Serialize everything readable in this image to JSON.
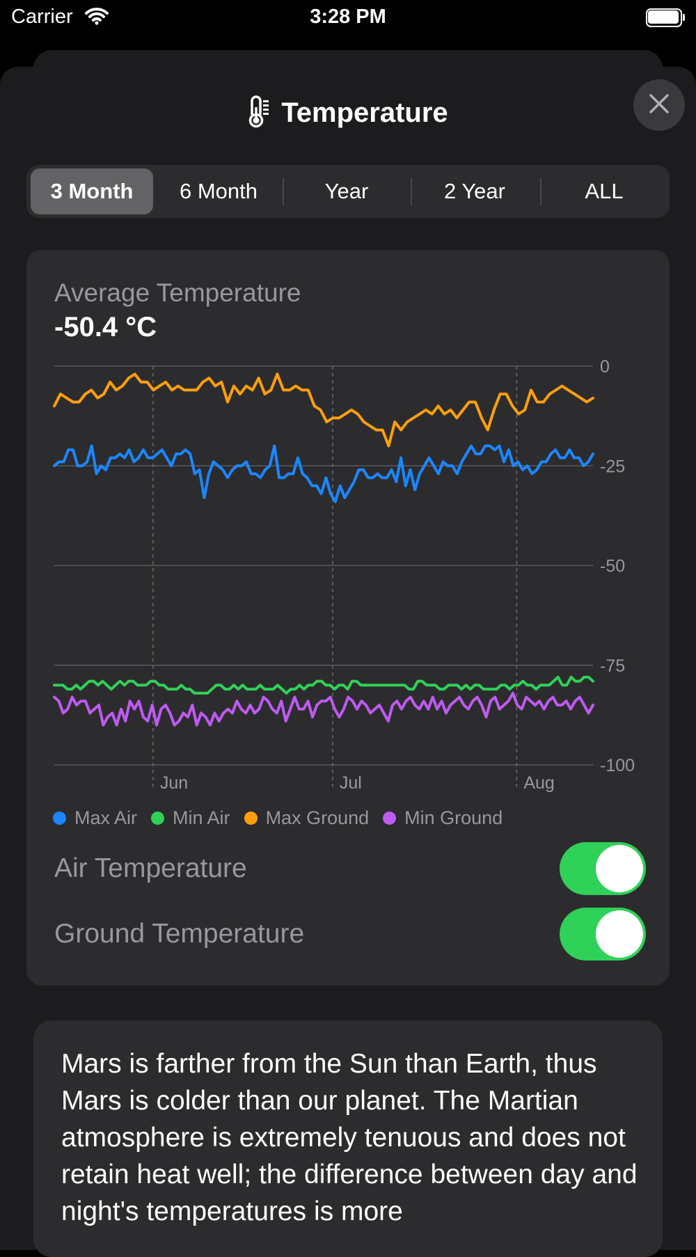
{
  "status_bar": {
    "carrier": "Carrier",
    "time": "3:28 PM"
  },
  "header": {
    "title": "Temperature",
    "icon": "thermometer-icon"
  },
  "range_tabs": [
    "3 Month",
    "6 Month",
    "Year",
    "2 Year",
    "ALL"
  ],
  "selected_range": "3 Month",
  "summary": {
    "label": "Average Temperature",
    "value": "-50.4 °C"
  },
  "chart_data": {
    "type": "line",
    "y_ticks": [
      "0",
      "-25",
      "-50",
      "-75",
      "-100"
    ],
    "ylim": [
      -100,
      0
    ],
    "x_ticks": [
      "Jun",
      "Jul",
      "Aug"
    ],
    "xlim": [
      0,
      120
    ],
    "x_tick_positions": [
      22,
      62,
      103
    ],
    "grid": true,
    "legend": "bottom",
    "series": [
      {
        "name": "Max Air",
        "color": "#1c86ff",
        "values": [
          -25,
          -24,
          -24,
          -21,
          -21,
          -25,
          -25,
          -24,
          -20,
          -27,
          -25,
          -26,
          -23,
          -23,
          -22,
          -23,
          -21,
          -24,
          -23,
          -21,
          -23,
          -23,
          -22,
          -21,
          -23,
          -25,
          -22,
          -22,
          -21,
          -22,
          -27,
          -26,
          -33,
          -27,
          -24,
          -25,
          -26,
          -28,
          -26,
          -25,
          -25,
          -24,
          -27,
          -27,
          -28,
          -26,
          -25,
          -20,
          -28,
          -28,
          -27,
          -27,
          -23,
          -27,
          -28,
          -30,
          -30,
          -32,
          -28,
          -32,
          -34,
          -30,
          -33,
          -31,
          -29,
          -26,
          -26,
          -28,
          -28,
          -27,
          -28,
          -28,
          -26,
          -29,
          -23,
          -30,
          -26,
          -31,
          -27,
          -25,
          -23,
          -25,
          -27,
          -24,
          -25,
          -25,
          -27,
          -24,
          -22,
          -20,
          -22,
          -22,
          -20,
          -20,
          -21,
          -20,
          -24,
          -21,
          -25,
          -24,
          -26,
          -25,
          -27,
          -26,
          -24,
          -24,
          -22,
          -21,
          -23,
          -23,
          -21,
          -23,
          -23,
          -25,
          -24,
          -22
        ]
      },
      {
        "name": "Min Air",
        "color": "#30d158",
        "values": [
          -80,
          -80,
          -80,
          -81,
          -81,
          -80,
          -81,
          -80,
          -79,
          -79,
          -80,
          -79,
          -80,
          -81,
          -80,
          -79,
          -80,
          -79,
          -79,
          -80,
          -80,
          -80,
          -79,
          -79,
          -80,
          -80,
          -81,
          -81,
          -81,
          -80,
          -81,
          -81,
          -82,
          -82,
          -82,
          -82,
          -81,
          -80,
          -80,
          -81,
          -81,
          -80,
          -81,
          -80,
          -81,
          -81,
          -81,
          -80,
          -81,
          -81,
          -81,
          -80,
          -81,
          -82,
          -81,
          -81,
          -80,
          -81,
          -80,
          -80,
          -79,
          -79,
          -80,
          -80,
          -81,
          -80,
          -80,
          -81,
          -79,
          -79,
          -80,
          -80,
          -80,
          -80,
          -80,
          -80,
          -80,
          -80,
          -80,
          -80,
          -80,
          -81,
          -81,
          -79,
          -79,
          -80,
          -80,
          -80,
          -81,
          -81,
          -80,
          -80,
          -80,
          -81,
          -80,
          -81,
          -80,
          -80,
          -81,
          -81,
          -81,
          -81,
          -80,
          -80,
          -81,
          -80,
          -80,
          -79,
          -80,
          -80,
          -81,
          -80,
          -80,
          -80,
          -79,
          -78,
          -80,
          -80,
          -78,
          -79,
          -79,
          -78,
          -78,
          -79
        ]
      },
      {
        "name": "Max Ground",
        "color": "#ff9f0a",
        "values": [
          -10,
          -7,
          -8,
          -9,
          -9,
          -7,
          -6,
          -8,
          -7,
          -4,
          -6,
          -5,
          -3,
          -2,
          -4,
          -4,
          -6,
          -5,
          -4,
          -6,
          -5,
          -6,
          -6,
          -6,
          -4,
          -3,
          -5,
          -4,
          -9,
          -5,
          -7,
          -5,
          -6,
          -3,
          -7,
          -6,
          -2,
          -6,
          -6,
          -5,
          -6,
          -6,
          -10,
          -11,
          -14,
          -13,
          -13,
          -12,
          -11,
          -12,
          -14,
          -15,
          -16,
          -16,
          -20,
          -14,
          -16,
          -14,
          -13,
          -12,
          -11,
          -12,
          -10,
          -12,
          -11,
          -13,
          -11,
          -9,
          -9,
          -13,
          -16,
          -11,
          -7,
          -7,
          -10,
          -12,
          -11,
          -6,
          -9,
          -9,
          -7,
          -6,
          -5,
          -6,
          -7,
          -8,
          -9,
          -8
        ]
      },
      {
        "name": "Min Ground",
        "color": "#bf5af2",
        "values": [
          -83,
          -84,
          -87,
          -86,
          -83,
          -85,
          -84,
          -84,
          -87,
          -86,
          -85,
          -90,
          -88,
          -87,
          -90,
          -86,
          -89,
          -84,
          -86,
          -84,
          -88,
          -89,
          -85,
          -90,
          -86,
          -85,
          -87,
          -90,
          -89,
          -87,
          -88,
          -85,
          -90,
          -87,
          -88,
          -90,
          -87,
          -89,
          -87,
          -86,
          -87,
          -84,
          -86,
          -87,
          -85,
          -87,
          -86,
          -83,
          -84,
          -86,
          -87,
          -84,
          -89,
          -86,
          -83,
          -86,
          -86,
          -84,
          -88,
          -85,
          -84,
          -84,
          -83,
          -86,
          -88,
          -86,
          -83,
          -84,
          -86,
          -84,
          -85,
          -87,
          -86,
          -85,
          -87,
          -89,
          -85,
          -84,
          -86,
          -84,
          -83,
          -85,
          -86,
          -84,
          -86,
          -83,
          -86,
          -84,
          -87,
          -85,
          -84,
          -83,
          -85,
          -86,
          -84,
          -83,
          -85,
          -88,
          -84,
          -83,
          -86,
          -85,
          -84,
          -82,
          -85,
          -86,
          -83,
          -84,
          -85,
          -84,
          -86,
          -84,
          -83,
          -85,
          -85,
          -84,
          -86,
          -84,
          -83,
          -85,
          -87,
          -85
        ]
      }
    ]
  },
  "legend_labels": [
    "Max Air",
    "Min Air",
    "Max Ground",
    "Min Ground"
  ],
  "toggles": [
    {
      "label": "Air Temperature",
      "on": true
    },
    {
      "label": "Ground Temperature",
      "on": true
    }
  ],
  "info": {
    "text": "Mars is farther from the Sun than Earth, thus Mars is colder than our planet. The Martian atmosphere is extremely tenuous and does not retain heat well; the difference between day and night's temperatures is more"
  }
}
